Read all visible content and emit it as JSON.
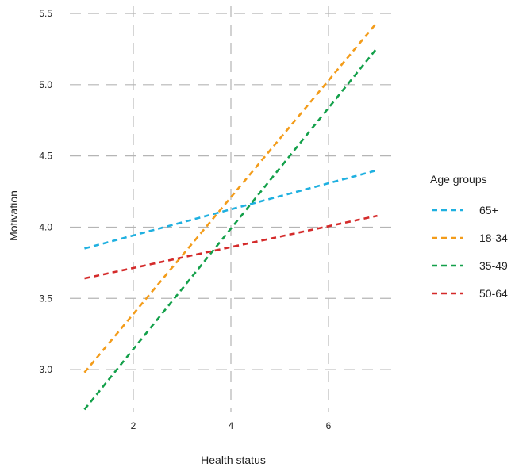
{
  "chart_data": {
    "type": "line",
    "xlabel": "Health status",
    "ylabel": "Motivation",
    "xlim": [
      0.7,
      7.3
    ],
    "ylim": [
      2.7,
      5.55
    ],
    "xticks": [
      2,
      4,
      6
    ],
    "yticks": [
      3.0,
      3.5,
      4.0,
      4.5,
      5.0,
      5.5
    ],
    "xtick_labels": [
      "2",
      "4",
      "6"
    ],
    "ytick_labels": [
      "3.0",
      "3.5",
      "4.0",
      "4.5",
      "5.0",
      "5.5"
    ],
    "grid": true,
    "legend": {
      "title": "Age groups",
      "position": "right"
    },
    "series": [
      {
        "name": "65+",
        "color": "#1FB0E0",
        "x": [
          1,
          7
        ],
        "y": [
          3.85,
          4.4
        ]
      },
      {
        "name": "18-34",
        "color": "#F39C1A",
        "x": [
          1,
          7
        ],
        "y": [
          2.98,
          5.44
        ]
      },
      {
        "name": "35-49",
        "color": "#13A04A",
        "x": [
          1,
          7
        ],
        "y": [
          2.72,
          5.26
        ]
      },
      {
        "name": "50-64",
        "color": "#D42A2A",
        "x": [
          1,
          7
        ],
        "y": [
          3.64,
          4.08
        ]
      }
    ]
  }
}
